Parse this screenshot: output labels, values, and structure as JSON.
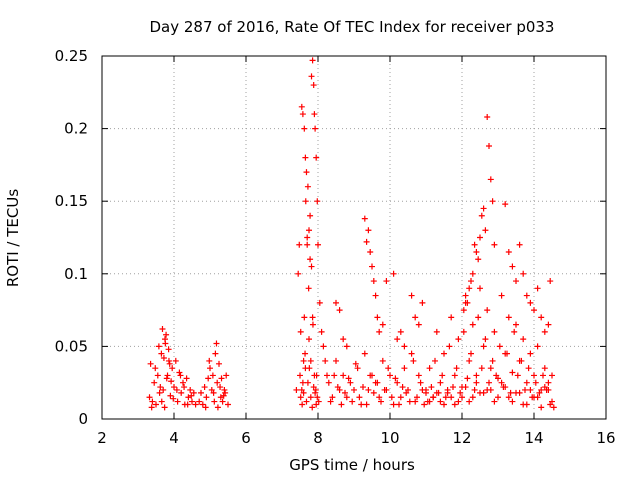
{
  "chart_data": {
    "type": "scatter",
    "title": "Day 287 of 2016, Rate Of TEC Index for receiver p033",
    "xlabel": "GPS time / hours",
    "ylabel": "ROTI / TECUs",
    "xlim": [
      2,
      16
    ],
    "ylim": [
      0,
      0.25
    ],
    "grid": true,
    "marker": "+",
    "color": "#ff0000",
    "xticks": [
      {
        "value": 2,
        "label": "2"
      },
      {
        "value": 4,
        "label": "4"
      },
      {
        "value": 6,
        "label": "6"
      },
      {
        "value": 8,
        "label": "8"
      },
      {
        "value": 10,
        "label": "10"
      },
      {
        "value": 12,
        "label": "12"
      },
      {
        "value": 14,
        "label": "14"
      },
      {
        "value": 16,
        "label": "16"
      }
    ],
    "yticks": [
      {
        "value": 0,
        "label": "0"
      },
      {
        "value": 0.05,
        "label": "0.05"
      },
      {
        "value": 0.1,
        "label": "0.1"
      },
      {
        "value": 0.15,
        "label": "0.15"
      },
      {
        "value": 0.2,
        "label": "0.2"
      },
      {
        "value": 0.25,
        "label": "0.25"
      }
    ],
    "series": [
      {
        "name": "ROTI",
        "x": [
          3.32,
          3.35,
          3.4,
          3.45,
          3.5,
          3.55,
          3.6,
          3.65,
          3.7,
          3.75,
          3.8,
          3.85,
          3.9,
          3.95,
          4.0,
          4.05,
          4.1,
          4.15,
          4.2,
          4.25,
          4.3,
          4.35,
          4.4,
          4.45,
          4.5,
          4.55,
          4.6,
          3.38,
          3.48,
          3.58,
          3.68,
          3.72,
          3.78,
          3.82,
          3.88,
          3.92,
          3.98,
          4.08,
          4.18,
          4.28,
          4.38,
          4.48,
          3.62,
          3.66,
          3.74,
          3.76,
          3.86,
          4.7,
          4.75,
          4.8,
          4.85,
          4.9,
          4.95,
          5.0,
          5.05,
          5.1,
          5.15,
          5.2,
          5.25,
          5.3,
          5.35,
          5.4,
          5.45,
          5.5,
          4.88,
          4.98,
          5.08,
          5.18,
          5.28,
          5.38,
          5.12,
          5.22,
          5.32,
          5.42,
          7.4,
          7.45,
          7.5,
          7.52,
          7.55,
          7.58,
          7.6,
          7.62,
          7.65,
          7.68,
          7.7,
          7.72,
          7.75,
          7.78,
          7.8,
          7.82,
          7.85,
          7.88,
          7.9,
          7.92,
          7.95,
          7.98,
          8.0,
          8.05,
          8.1,
          8.15,
          8.2,
          8.25,
          7.58,
          7.62,
          7.66,
          7.7,
          7.74,
          7.78,
          7.82,
          7.86,
          7.9,
          7.94,
          7.98,
          8.02,
          7.55,
          7.65,
          7.75,
          7.85,
          7.95,
          7.48,
          7.52,
          7.56,
          7.6,
          7.64,
          7.68,
          7.72,
          7.76,
          7.8,
          7.84,
          7.88,
          7.92,
          7.96,
          8.3,
          8.4,
          8.5,
          8.6,
          8.7,
          8.8,
          8.9,
          9.0,
          9.1,
          9.2,
          9.3,
          9.4,
          9.5,
          9.6,
          9.7,
          9.8,
          9.9,
          10.0,
          10.1,
          10.2,
          10.3,
          10.4,
          10.5,
          10.6,
          10.7,
          10.8,
          10.9,
          11.0,
          8.35,
          8.45,
          8.55,
          8.65,
          8.75,
          8.85,
          8.95,
          9.05,
          9.15,
          9.25,
          9.35,
          9.45,
          9.55,
          9.65,
          9.75,
          9.85,
          9.95,
          10.05,
          10.15,
          10.25,
          10.35,
          10.45,
          10.55,
          10.65,
          10.75,
          10.85,
          10.95,
          9.3,
          9.35,
          9.4,
          9.45,
          9.5,
          9.55,
          9.6,
          9.65,
          9.7,
          8.5,
          8.6,
          8.7,
          8.8,
          9.8,
          9.9,
          10.1,
          10.2,
          10.3,
          10.4,
          10.6,
          10.7,
          10.8,
          10.9,
          11.0,
          11.1,
          11.2,
          11.3,
          11.4,
          11.5,
          11.6,
          11.7,
          11.8,
          11.9,
          12.0,
          12.1,
          12.2,
          12.3,
          12.4,
          12.5,
          12.6,
          12.7,
          12.8,
          12.9,
          13.0,
          13.1,
          13.2,
          13.3,
          13.4,
          13.5,
          13.6,
          13.7,
          13.8,
          13.9,
          14.0,
          14.1,
          14.2,
          14.3,
          14.4,
          14.5,
          11.05,
          11.15,
          11.25,
          11.35,
          11.45,
          11.55,
          11.65,
          11.75,
          11.85,
          11.95,
          12.05,
          12.15,
          12.25,
          12.35,
          12.45,
          12.55,
          12.65,
          12.75,
          12.85,
          12.95,
          13.05,
          13.15,
          13.25,
          13.35,
          13.45,
          13.55,
          13.65,
          13.75,
          13.85,
          13.95,
          14.05,
          14.15,
          14.25,
          14.35,
          14.45,
          14.55,
          11.2,
          11.4,
          11.6,
          11.8,
          12.0,
          12.2,
          12.4,
          12.6,
          12.8,
          13.0,
          13.2,
          13.4,
          13.6,
          13.8,
          14.0,
          14.2,
          14.4,
          11.1,
          11.3,
          11.5,
          11.7,
          11.9,
          12.1,
          12.3,
          12.5,
          12.7,
          12.9,
          13.1,
          13.3,
          13.5,
          13.7,
          13.9,
          14.1,
          14.3,
          14.5,
          12.7,
          12.75,
          12.8,
          12.85,
          12.9,
          12.6,
          12.65,
          12.55,
          12.5,
          12.45,
          12.4,
          12.35,
          12.3,
          12.25,
          12.2,
          12.15,
          12.1,
          12.05,
          13.2,
          13.3,
          13.4,
          13.5,
          13.6,
          13.7,
          13.8,
          13.9,
          14.0,
          14.1,
          14.2,
          14.3,
          14.4,
          14.45
        ],
        "y": [
          0.015,
          0.038,
          0.012,
          0.025,
          0.01,
          0.03,
          0.018,
          0.045,
          0.02,
          0.055,
          0.028,
          0.048,
          0.016,
          0.035,
          0.022,
          0.04,
          0.012,
          0.032,
          0.018,
          0.025,
          0.01,
          0.028,
          0.015,
          0.02,
          0.012,
          0.018,
          0.01,
          0.008,
          0.035,
          0.05,
          0.062,
          0.042,
          0.058,
          0.03,
          0.038,
          0.026,
          0.014,
          0.02,
          0.03,
          0.022,
          0.01,
          0.016,
          0.022,
          0.012,
          0.008,
          0.052,
          0.04,
          0.012,
          0.018,
          0.01,
          0.022,
          0.015,
          0.028,
          0.035,
          0.02,
          0.018,
          0.045,
          0.025,
          0.038,
          0.015,
          0.012,
          0.02,
          0.03,
          0.01,
          0.008,
          0.04,
          0.03,
          0.052,
          0.022,
          0.016,
          0.012,
          0.008,
          0.028,
          0.018,
          0.02,
          0.1,
          0.03,
          0.015,
          0.215,
          0.21,
          0.04,
          0.2,
          0.18,
          0.17,
          0.12,
          0.16,
          0.13,
          0.11,
          0.04,
          0.236,
          0.247,
          0.23,
          0.21,
          0.2,
          0.18,
          0.15,
          0.12,
          0.08,
          0.06,
          0.05,
          0.04,
          0.03,
          0.025,
          0.07,
          0.15,
          0.125,
          0.09,
          0.14,
          0.105,
          0.065,
          0.03,
          0.02,
          0.015,
          0.012,
          0.02,
          0.035,
          0.055,
          0.07,
          0.01,
          0.12,
          0.06,
          0.01,
          0.018,
          0.045,
          0.012,
          0.025,
          0.035,
          0.015,
          0.008,
          0.022,
          0.018,
          0.03,
          0.025,
          0.015,
          0.04,
          0.02,
          0.03,
          0.015,
          0.025,
          0.02,
          0.035,
          0.01,
          0.045,
          0.02,
          0.03,
          0.025,
          0.015,
          0.04,
          0.02,
          0.03,
          0.01,
          0.025,
          0.015,
          0.035,
          0.02,
          0.045,
          0.012,
          0.03,
          0.02,
          0.018,
          0.012,
          0.03,
          0.022,
          0.01,
          0.018,
          0.028,
          0.012,
          0.038,
          0.015,
          0.022,
          0.01,
          0.03,
          0.018,
          0.025,
          0.012,
          0.02,
          0.035,
          0.015,
          0.028,
          0.01,
          0.022,
          0.018,
          0.012,
          0.04,
          0.015,
          0.025,
          0.01,
          0.138,
          0.122,
          0.13,
          0.115,
          0.105,
          0.095,
          0.085,
          0.07,
          0.06,
          0.08,
          0.075,
          0.055,
          0.05,
          0.065,
          0.095,
          0.1,
          0.055,
          0.06,
          0.05,
          0.085,
          0.07,
          0.065,
          0.08,
          0.02,
          0.035,
          0.015,
          0.06,
          0.025,
          0.045,
          0.018,
          0.07,
          0.03,
          0.055,
          0.022,
          0.08,
          0.04,
          0.065,
          0.03,
          0.09,
          0.05,
          0.075,
          0.035,
          0.06,
          0.028,
          0.085,
          0.045,
          0.07,
          0.032,
          0.065,
          0.04,
          0.055,
          0.025,
          0.045,
          0.03,
          0.05,
          0.02,
          0.035,
          0.025,
          0.03,
          0.012,
          0.022,
          0.04,
          0.018,
          0.03,
          0.015,
          0.05,
          0.022,
          0.035,
          0.018,
          0.06,
          0.028,
          0.045,
          0.02,
          0.07,
          0.035,
          0.055,
          0.025,
          0.04,
          0.03,
          0.05,
          0.022,
          0.045,
          0.018,
          0.06,
          0.03,
          0.04,
          0.02,
          0.035,
          0.015,
          0.025,
          0.018,
          0.03,
          0.02,
          0.01,
          0.008,
          0.015,
          0.012,
          0.02,
          0.01,
          0.015,
          0.012,
          0.025,
          0.018,
          0.02,
          0.015,
          0.022,
          0.012,
          0.018,
          0.01,
          0.015,
          0.008,
          0.02,
          0.012,
          0.018,
          0.01,
          0.015,
          0.012,
          0.022,
          0.015,
          0.018,
          0.02,
          0.012,
          0.025,
          0.015,
          0.018,
          0.01,
          0.02,
          0.015,
          0.022,
          0.012,
          0.208,
          0.188,
          0.165,
          0.15,
          0.12,
          0.145,
          0.13,
          0.14,
          0.125,
          0.11,
          0.115,
          0.12,
          0.1,
          0.095,
          0.09,
          0.08,
          0.085,
          0.075,
          0.148,
          0.115,
          0.105,
          0.095,
          0.12,
          0.1,
          0.085,
          0.08,
          0.075,
          0.09,
          0.07,
          0.06,
          0.065,
          0.095
        ]
      }
    ]
  }
}
